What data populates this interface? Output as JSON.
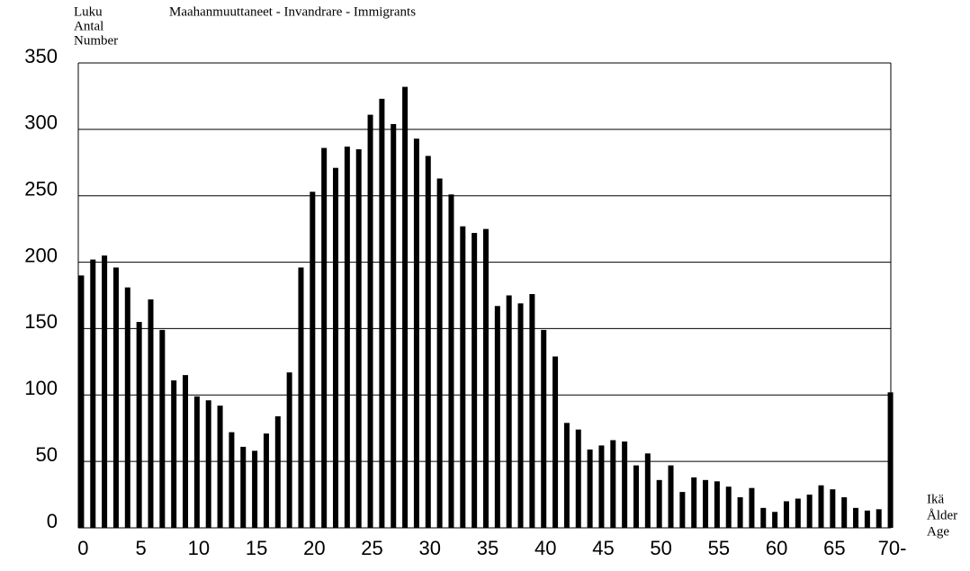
{
  "chart_data": {
    "type": "bar",
    "title": "Maahanmuuttaneet - Invandrare - Immigrants",
    "y_label": [
      "Luku",
      "Antal",
      "Number"
    ],
    "x_label": [
      "Ikä",
      "Ålder",
      "Age"
    ],
    "categories": [
      "0",
      null,
      null,
      null,
      null,
      "5",
      null,
      null,
      null,
      null,
      "10",
      null,
      null,
      null,
      null,
      "15",
      null,
      null,
      null,
      null,
      "20",
      null,
      null,
      null,
      null,
      "25",
      null,
      null,
      null,
      null,
      "30",
      null,
      null,
      null,
      null,
      "35",
      null,
      null,
      null,
      null,
      "40",
      null,
      null,
      null,
      null,
      "45",
      null,
      null,
      null,
      null,
      "50",
      null,
      null,
      null,
      null,
      "55",
      null,
      null,
      null,
      null,
      "60",
      null,
      null,
      null,
      null,
      "65",
      null,
      null,
      null,
      null,
      "70-"
    ],
    "values": [
      190,
      202,
      205,
      196,
      181,
      155,
      172,
      149,
      111,
      115,
      99,
      96,
      92,
      72,
      61,
      58,
      71,
      84,
      117,
      196,
      253,
      286,
      271,
      287,
      285,
      311,
      323,
      304,
      332,
      293,
      280,
      263,
      251,
      227,
      222,
      225,
      167,
      175,
      169,
      176,
      149,
      129,
      79,
      74,
      59,
      62,
      66,
      65,
      47,
      56,
      36,
      47,
      27,
      38,
      36,
      35,
      31,
      23,
      30,
      15,
      12,
      20,
      22,
      25,
      32,
      29,
      23,
      15,
      13,
      14,
      102
    ],
    "color": "#000000",
    "ylim": [
      0,
      350
    ],
    "yticks": [
      0,
      50,
      100,
      150,
      200,
      250,
      300,
      350
    ],
    "grid": true
  }
}
